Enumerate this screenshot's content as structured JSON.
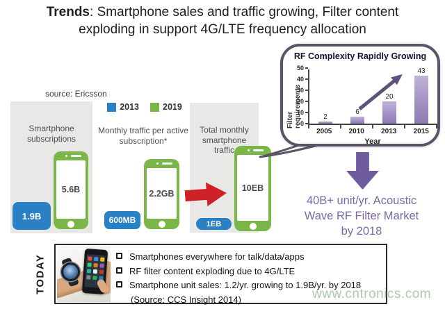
{
  "title": {
    "bold": "Trends",
    "line1_rest": ": Smartphone sales and traffic growing, Filter content",
    "line2": "exploding in support 4G/LTE frequency allocation"
  },
  "source_note": "source: Ericsson",
  "legend": [
    {
      "label": "2013",
      "color": "#2980c4"
    },
    {
      "label": "2019",
      "color": "#7ab648"
    }
  ],
  "panels": [
    {
      "title": "Smartphone subscriptions",
      "value_2013": "1.9B",
      "value_2019": "5.6B"
    },
    {
      "title": "Monthly traffic per active subscription*",
      "value_2013": "600MB",
      "value_2019": "2.2GB"
    },
    {
      "title": "Total monthly smartphone traffic",
      "value_2013": "1EB",
      "value_2019": "10EB"
    }
  ],
  "chart_data": {
    "type": "bar",
    "title": "RF Complexity Rapidly Growing",
    "categories": [
      "2005",
      "2010",
      "2013",
      "2015"
    ],
    "values": [
      2,
      6,
      20,
      43
    ],
    "xlabel": "Year",
    "ylabel": "Filter requirements",
    "ylim": [
      0,
      50
    ],
    "yticks": [
      0,
      10,
      20,
      30,
      40,
      50
    ],
    "grid": false,
    "legend_position": "none",
    "annotation": "upward-trend-arrow"
  },
  "market_callout": {
    "lines": [
      "40B+ unit/yr. Acoustic",
      "Wave RF Filter Market",
      "by 2018"
    ]
  },
  "today": {
    "label": "TODAY",
    "bullets": [
      "Smartphones everywhere for talk/data/apps",
      "RF filter content exploding due to 4G/LTE",
      "Smartphone unit sales: 1.2/yr. growing to 1.9B/yr. by 2018"
    ],
    "source": "(Source: CCS Insight 2014)"
  },
  "watermark": "www.cntronics.com",
  "colors": {
    "title_text": "#1e1e1e",
    "blue_2013": "#2980c4",
    "green_2019": "#7ab648",
    "panel_gray": "#e9e8e6",
    "red_arrow": "#ce2127",
    "purple_text": "#7b68a8",
    "purple_arrow": "#6e5c9e",
    "bubble_border": "#5a5566",
    "watermark_green": "#a3c6a3"
  }
}
